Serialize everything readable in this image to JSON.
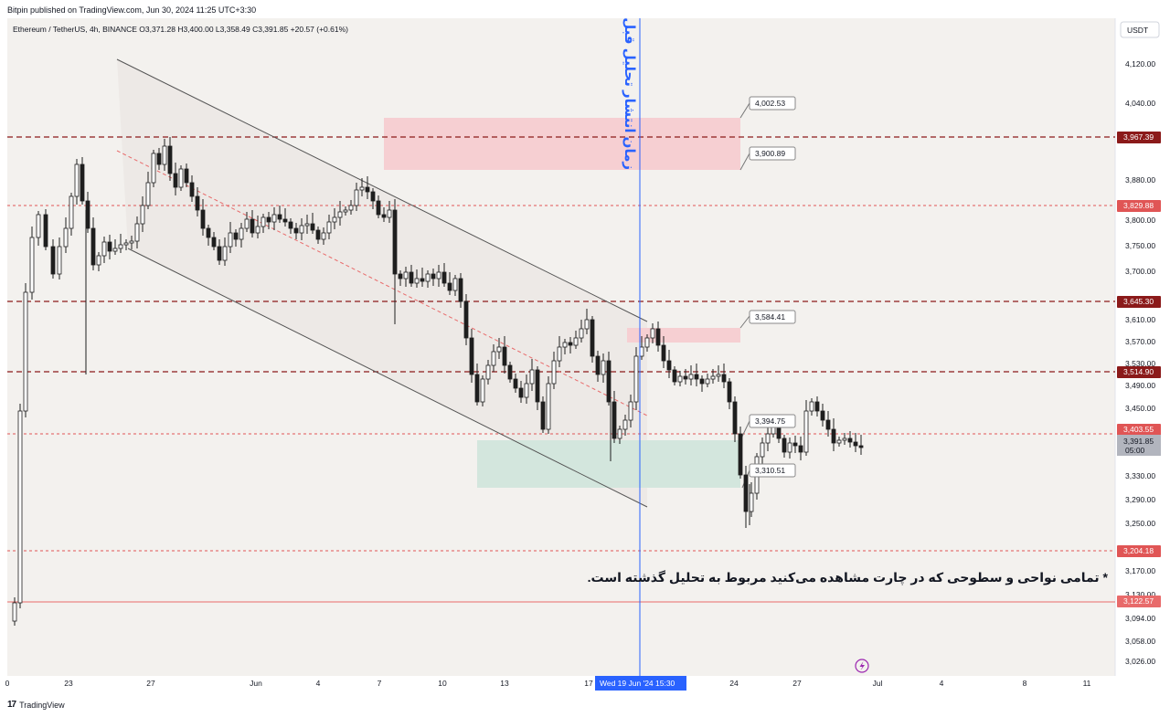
{
  "header": {
    "publisher": "Bitpin published on TradingView.com, Jun 30, 2024 11:25 UTC+3:30"
  },
  "symbol_info": {
    "text": "Ethereum / TetherUS, 4h, BINANCE  O3,371.28  H3,400.00  L3,358.49  C3,391.85  +20.57 (+0.61%)"
  },
  "currency_button": "USDT",
  "footer_logo": "TradingView",
  "colors": {
    "background": "#f3f1ee",
    "level_dark_red": "#8b1a1a",
    "level_red": "#e05555",
    "candle": "#1e1e1e",
    "channel": "#555555",
    "channel_mid": "#e86a6a",
    "vline": "#2962ff",
    "supply_zone": "#f6cfd2",
    "demand_zone": "#d3e6dd"
  },
  "chart_data": {
    "type": "candlestick",
    "price_axis": {
      "ticks": [
        "4,120.00",
        "4,040.00",
        "3,880.00",
        "3,800.00",
        "3,750.00",
        "3,700.00",
        "3,610.00",
        "3,570.00",
        "3,530.00",
        "3,490.00",
        "3,450.00",
        "3,330.00",
        "3,290.00",
        "3,250.00",
        "3,170.00",
        "3,130.00",
        "3,094.00",
        "3,058.00",
        "3,026.00"
      ],
      "scale": "non-linear"
    },
    "time_axis": {
      "ticks": [
        "0",
        "23",
        "27",
        "Jun",
        "4",
        "7",
        "10",
        "13",
        "17",
        "24",
        "27",
        "Jul",
        "4",
        "8",
        "11"
      ],
      "cursor_label": "Wed 19 Jun '24   15:30"
    },
    "levels": [
      {
        "price": "3,967.39",
        "style": "dark-dashed"
      },
      {
        "price": "3,829.88",
        "style": "red-dashed"
      },
      {
        "price": "3,645.30",
        "style": "dark-dashed"
      },
      {
        "price": "3,514.90",
        "style": "dark-dashed"
      },
      {
        "price": "3,403.55",
        "style": "red-dashed"
      },
      {
        "price": "3,204.18",
        "style": "red-dashed"
      },
      {
        "price": "3,122.57",
        "style": "red-solid"
      }
    ],
    "last_price": {
      "price": "3,391.85",
      "countdown": "05:00"
    },
    "callouts": [
      "4,002.53",
      "3,900.89",
      "3,584.41",
      "3,394.75",
      "3,310.51"
    ],
    "vertical_annotation": "زمان انتشار تحلیل قبل",
    "note": "* تمامی نواحی و سطوحی که در چارت مشاهده می‌کنید مربوط به تحلیل گذشته است."
  }
}
